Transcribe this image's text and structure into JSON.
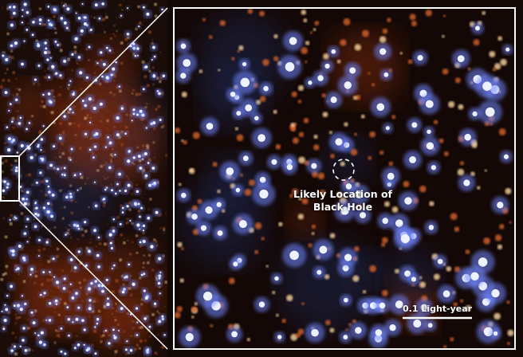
{
  "annotation": {
    "line1": "Likely Location of",
    "line2": "Black Hole"
  },
  "scale_bar": {
    "label": "0.1 Light-year"
  },
  "colors": {
    "frame": "#ffffff",
    "blue_star": "#8fa8ff",
    "red_star": "#e0702a",
    "background": "#120806"
  }
}
